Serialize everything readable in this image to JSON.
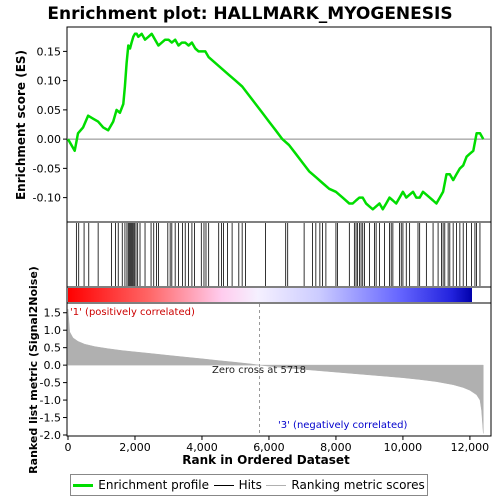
{
  "chart_data": {
    "type": "line",
    "title": "Enrichment plot: HALLMARK_MYOGENESIS",
    "es_panel": {
      "ylabel": "Enrichment score (ES)",
      "yticks": [
        -0.1,
        -0.05,
        0.0,
        0.05,
        0.1,
        0.15
      ],
      "ytick_labels": [
        "-0.10",
        "-0.05",
        "0.00",
        "0.05",
        "0.10",
        "0.15"
      ],
      "ylim": [
        -0.14,
        0.19
      ],
      "series": [
        {
          "name": "Enrichment profile",
          "color": "#00dd00",
          "x": [
            0,
            200,
            300,
            450,
            600,
            750,
            900,
            1050,
            1200,
            1350,
            1450,
            1550,
            1650,
            1700,
            1750,
            1800,
            1850,
            1900,
            1950,
            2000,
            2050,
            2100,
            2200,
            2300,
            2400,
            2500,
            2600,
            2700,
            2800,
            2900,
            3000,
            3100,
            3200,
            3300,
            3400,
            3500,
            3600,
            3700,
            3800,
            3900,
            4000,
            4100,
            4200,
            4400,
            4600,
            4800,
            5000,
            5200,
            5400,
            5600,
            5800,
            6000,
            6200,
            6400,
            6600,
            6800,
            7000,
            7200,
            7400,
            7600,
            7800,
            8000,
            8200,
            8400,
            8500,
            8600,
            8700,
            8800,
            8900,
            9000,
            9100,
            9200,
            9300,
            9400,
            9500,
            9600,
            9700,
            9800,
            9900,
            10000,
            10100,
            10200,
            10300,
            10400,
            10500,
            10600,
            10700,
            10800,
            10900,
            11000,
            11100,
            11200,
            11300,
            11400,
            11500,
            11600,
            11700,
            11800,
            11900,
            12000,
            12100,
            12200,
            12300,
            12400
          ],
          "y": [
            0.0,
            -0.02,
            0.01,
            0.02,
            0.04,
            0.035,
            0.03,
            0.02,
            0.015,
            0.03,
            0.05,
            0.045,
            0.06,
            0.09,
            0.13,
            0.16,
            0.155,
            0.165,
            0.175,
            0.18,
            0.18,
            0.175,
            0.18,
            0.17,
            0.175,
            0.18,
            0.17,
            0.16,
            0.165,
            0.17,
            0.17,
            0.165,
            0.17,
            0.16,
            0.165,
            0.165,
            0.16,
            0.165,
            0.155,
            0.15,
            0.15,
            0.15,
            0.14,
            0.13,
            0.12,
            0.11,
            0.1,
            0.09,
            0.075,
            0.06,
            0.045,
            0.03,
            0.015,
            0.0,
            -0.01,
            -0.025,
            -0.04,
            -0.055,
            -0.065,
            -0.075,
            -0.085,
            -0.09,
            -0.1,
            -0.11,
            -0.11,
            -0.105,
            -0.1,
            -0.1,
            -0.11,
            -0.115,
            -0.12,
            -0.115,
            -0.11,
            -0.12,
            -0.11,
            -0.1,
            -0.105,
            -0.11,
            -0.1,
            -0.09,
            -0.1,
            -0.095,
            -0.09,
            -0.1,
            -0.1,
            -0.09,
            -0.095,
            -0.1,
            -0.105,
            -0.11,
            -0.1,
            -0.09,
            -0.06,
            -0.06,
            -0.07,
            -0.06,
            -0.05,
            -0.045,
            -0.03,
            -0.025,
            -0.02,
            0.01,
            0.01,
            0.0
          ]
        }
      ]
    },
    "hits_panel": {
      "series_name": "Hits",
      "color": "#000000",
      "hit_ranks": [
        250,
        320,
        480,
        620,
        900,
        1300,
        1420,
        1500,
        1620,
        1700,
        1760,
        1800,
        1830,
        1860,
        1890,
        1920,
        1950,
        1990,
        2030,
        2080,
        2150,
        2300,
        2480,
        2560,
        2640,
        2700,
        2980,
        3050,
        3100,
        3200,
        3300,
        3420,
        3500,
        3600,
        3700,
        3780,
        3980,
        4060,
        4120,
        4200,
        4500,
        4580,
        4640,
        4760,
        4900,
        5100,
        5200,
        5300,
        5900,
        6500,
        6560,
        7050,
        7300,
        7400,
        7520,
        7600,
        7700,
        8000,
        8050,
        8400,
        8550,
        8600,
        8640,
        8700,
        8750,
        8800,
        8850,
        9000,
        9150,
        9200,
        9300,
        9450,
        9600,
        9650,
        9700,
        9900,
        9950,
        10000,
        10100,
        10200,
        10450,
        10500,
        10700,
        10900,
        11050,
        11150,
        11200,
        11250,
        11350,
        11400,
        11500,
        11600,
        11700,
        11800,
        11900,
        12050,
        12150,
        12200,
        12300
      ]
    },
    "ranking_panel": {
      "series_name": "Ranking metric scores",
      "fill_color": "#b0b0b0",
      "ylabel": "Ranked list metric (Signal2Noise)",
      "xlabel": "Rank in Ordered Dataset",
      "yticks": [
        -2.0,
        -1.5,
        -1.0,
        -0.5,
        0.0,
        0.5,
        1.0,
        1.5
      ],
      "ytick_labels": [
        "-2.0",
        "-1.5",
        "-1.0",
        "-0.5",
        "0.0",
        "0.5",
        "1.0",
        "1.5"
      ],
      "ylim": [
        -2.0,
        1.75
      ],
      "x": [
        0,
        50,
        150,
        300,
        500,
        800,
        1200,
        1600,
        2000,
        2500,
        3000,
        3500,
        4000,
        4500,
        5000,
        5500,
        5718,
        6000,
        6500,
        7000,
        7500,
        8000,
        8500,
        9000,
        9500,
        10000,
        10500,
        11000,
        11500,
        11800,
        12000,
        12200,
        12300,
        12350,
        12400
      ],
      "y": [
        1.6,
        0.95,
        0.78,
        0.68,
        0.6,
        0.53,
        0.47,
        0.42,
        0.38,
        0.33,
        0.28,
        0.23,
        0.18,
        0.13,
        0.08,
        0.03,
        0.0,
        -0.03,
        -0.08,
        -0.12,
        -0.16,
        -0.2,
        -0.24,
        -0.28,
        -0.32,
        -0.36,
        -0.41,
        -0.47,
        -0.56,
        -0.64,
        -0.72,
        -0.85,
        -1.0,
        -1.3,
        -1.95
      ],
      "pos_label": "'1' (positively correlated)",
      "neg_label": "'3' (negatively correlated)",
      "zero_cross_label": "Zero cross at 5718",
      "zero_cross_x": 5718
    },
    "xaxis": {
      "xlim": [
        0,
        12600
      ],
      "xticks": [
        0,
        2000,
        4000,
        6000,
        8000,
        10000,
        12000
      ],
      "xtick_labels": [
        "0",
        "2,000",
        "4,000",
        "6,000",
        "8,000",
        "10,000",
        "12,000"
      ]
    },
    "legend": {
      "items": [
        {
          "label": "Enrichment profile",
          "color": "#00dd00"
        },
        {
          "label": "Hits",
          "color": "#000000"
        },
        {
          "label": "Ranking metric scores",
          "color": "#b0b0b0"
        }
      ]
    }
  }
}
